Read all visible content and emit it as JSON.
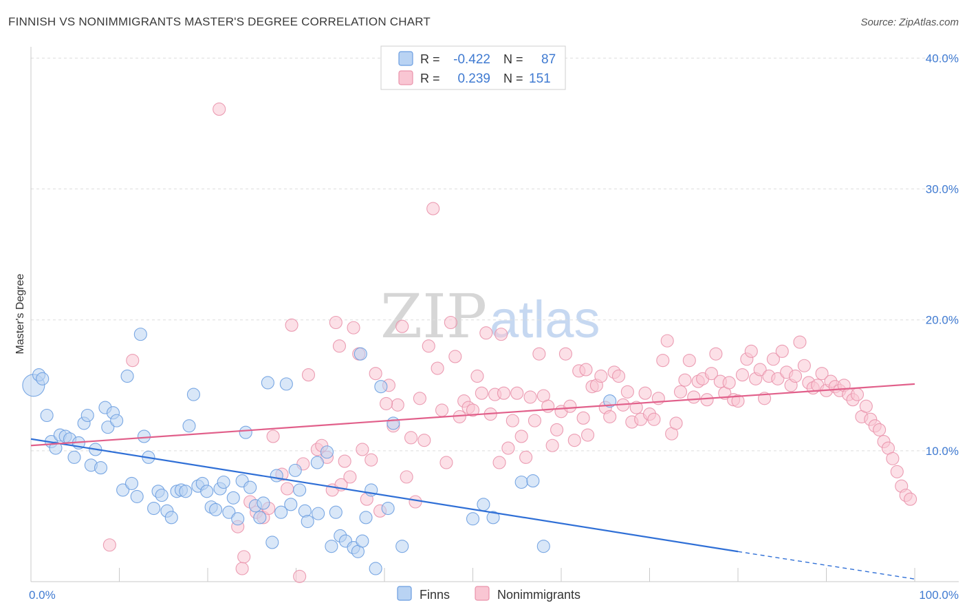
{
  "title": "FINNISH VS NONIMMIGRANTS MASTER'S DEGREE CORRELATION CHART",
  "source": "Source: ZipAtlas.com",
  "watermark": {
    "zip": "ZIP",
    "atlas": "atlas"
  },
  "legend": {
    "r_label": "R =",
    "n_label": "N =",
    "rows": [
      {
        "r": "-0.422",
        "n": "87",
        "fill": "#b9d3f3",
        "stroke": "#6a9de0"
      },
      {
        "r": "0.239",
        "n": "151",
        "fill": "#f9c6d3",
        "stroke": "#e992ab"
      }
    ]
  },
  "bottom_legend": [
    {
      "label": "Finns",
      "fill": "#b9d3f3",
      "stroke": "#6a9de0"
    },
    {
      "label": "Nonimmigrants",
      "fill": "#f9c6d3",
      "stroke": "#e992ab"
    }
  ],
  "chart_data": {
    "type": "scatter",
    "title": "FINNISH VS NONIMMIGRANTS MASTER'S DEGREE CORRELATION CHART",
    "xlabel": "",
    "ylabel": "Master's Degree",
    "xlim": [
      0,
      100
    ],
    "ylim": [
      0,
      40.6
    ],
    "x_tick_labels": [
      "0.0%",
      "100.0%"
    ],
    "y_ticks": [
      10,
      20,
      30,
      40
    ],
    "y_tick_labels": [
      "10.0%",
      "20.0%",
      "30.0%",
      "40.0%"
    ],
    "grid": true,
    "series": [
      {
        "name": "Finns",
        "color": "#6a9de0",
        "fill": "#b9d3f3",
        "trend": {
          "x0": 0,
          "y0": 10.9,
          "x1": 80,
          "y1": 2.3,
          "dash_to_x": 100,
          "dash_to_y": 0.2,
          "color": "#2f6fd6"
        },
        "points": [
          [
            0.3,
            15.0,
            3
          ],
          [
            0.9,
            15.8,
            1
          ],
          [
            1.3,
            15.5,
            1
          ],
          [
            1.8,
            12.7,
            1
          ],
          [
            2.3,
            10.7,
            1
          ],
          [
            2.8,
            10.2,
            1
          ],
          [
            3.3,
            11.2,
            1
          ],
          [
            3.9,
            11.1,
            1
          ],
          [
            4.4,
            10.9,
            1
          ],
          [
            4.9,
            9.5,
            1
          ],
          [
            5.4,
            10.6,
            1
          ],
          [
            6.0,
            12.1,
            1
          ],
          [
            6.4,
            12.7,
            1
          ],
          [
            6.8,
            8.9,
            1
          ],
          [
            7.3,
            10.1,
            1
          ],
          [
            7.9,
            8.7,
            1
          ],
          [
            8.4,
            13.3,
            1
          ],
          [
            8.7,
            11.8,
            1
          ],
          [
            9.3,
            12.9,
            1
          ],
          [
            9.7,
            12.3,
            1
          ],
          [
            10.4,
            7.0,
            1
          ],
          [
            10.9,
            15.7,
            1
          ],
          [
            11.4,
            7.5,
            1
          ],
          [
            12.0,
            6.5,
            1
          ],
          [
            12.4,
            18.9,
            1
          ],
          [
            12.8,
            11.1,
            1
          ],
          [
            13.3,
            9.5,
            1
          ],
          [
            13.9,
            5.6,
            1
          ],
          [
            14.4,
            6.9,
            1
          ],
          [
            14.8,
            6.6,
            1
          ],
          [
            15.4,
            5.4,
            1
          ],
          [
            15.9,
            4.9,
            1
          ],
          [
            16.5,
            6.9,
            1
          ],
          [
            17.0,
            7.0,
            1
          ],
          [
            17.5,
            6.9,
            1
          ],
          [
            17.9,
            11.9,
            1
          ],
          [
            18.4,
            14.3,
            1
          ],
          [
            18.9,
            7.3,
            1
          ],
          [
            19.4,
            7.5,
            1
          ],
          [
            19.9,
            6.9,
            1
          ],
          [
            20.4,
            5.7,
            1
          ],
          [
            20.9,
            5.5,
            1
          ],
          [
            21.4,
            7.1,
            1
          ],
          [
            21.8,
            7.6,
            1
          ],
          [
            22.4,
            5.3,
            1
          ],
          [
            22.9,
            6.4,
            1
          ],
          [
            23.4,
            4.8,
            1
          ],
          [
            23.9,
            7.7,
            1
          ],
          [
            24.3,
            11.4,
            1
          ],
          [
            24.8,
            7.2,
            1
          ],
          [
            25.4,
            5.8,
            1
          ],
          [
            25.9,
            4.9,
            1
          ],
          [
            26.3,
            6.0,
            1
          ],
          [
            26.8,
            15.2,
            1
          ],
          [
            27.3,
            3.0,
            1
          ],
          [
            27.8,
            8.1,
            1
          ],
          [
            28.3,
            5.3,
            1
          ],
          [
            28.9,
            15.1,
            1
          ],
          [
            29.4,
            5.9,
            1
          ],
          [
            29.9,
            8.5,
            1
          ],
          [
            30.4,
            7.0,
            1
          ],
          [
            31.0,
            5.4,
            1
          ],
          [
            31.3,
            4.6,
            1
          ],
          [
            32.4,
            9.1,
            1
          ],
          [
            32.5,
            5.2,
            1
          ],
          [
            33.5,
            9.9,
            1
          ],
          [
            34.0,
            2.7,
            1
          ],
          [
            34.5,
            5.3,
            1
          ],
          [
            35.0,
            3.5,
            1
          ],
          [
            35.6,
            3.1,
            1
          ],
          [
            36.5,
            2.6,
            1
          ],
          [
            37.0,
            2.3,
            1
          ],
          [
            37.5,
            3.1,
            1
          ],
          [
            37.9,
            4.9,
            1
          ],
          [
            38.5,
            7.0,
            1
          ],
          [
            39.0,
            1.0,
            1
          ],
          [
            39.6,
            14.9,
            1
          ],
          [
            40.4,
            5.6,
            1
          ],
          [
            41.0,
            12.1,
            1
          ],
          [
            42.0,
            2.7,
            1
          ],
          [
            50.0,
            4.8,
            1
          ],
          [
            51.2,
            5.9,
            1
          ],
          [
            52.3,
            4.9,
            1
          ],
          [
            55.5,
            7.6,
            1
          ],
          [
            56.8,
            7.7,
            1
          ],
          [
            58.0,
            2.7,
            1
          ],
          [
            65.5,
            13.8,
            1
          ],
          [
            37.3,
            17.4,
            1
          ]
        ]
      },
      {
        "name": "Nonimmigrants",
        "color": "#e992ab",
        "fill": "#f9c6d3",
        "trend": {
          "x0": 0,
          "y0": 10.4,
          "x1": 100,
          "y1": 15.1,
          "color": "#e15f8a"
        },
        "points": [
          [
            8.9,
            2.8,
            1
          ],
          [
            11.5,
            16.9,
            1
          ],
          [
            21.3,
            36.1,
            1
          ],
          [
            23.4,
            4.2,
            1
          ],
          [
            23.9,
            1.0,
            1
          ],
          [
            24.8,
            6.1,
            1
          ],
          [
            25.5,
            5.3,
            1
          ],
          [
            26.3,
            4.9,
            1
          ],
          [
            26.9,
            5.6,
            1
          ],
          [
            27.4,
            11.1,
            1
          ],
          [
            28.4,
            8.2,
            1
          ],
          [
            29.0,
            7.1,
            1
          ],
          [
            29.5,
            19.6,
            1
          ],
          [
            30.4,
            0.4,
            1
          ],
          [
            30.8,
            9.0,
            1
          ],
          [
            31.4,
            15.8,
            1
          ],
          [
            32.4,
            10.1,
            1
          ],
          [
            32.9,
            10.4,
            1
          ],
          [
            33.5,
            9.5,
            1
          ],
          [
            34.1,
            7.0,
            1
          ],
          [
            34.5,
            19.8,
            1
          ],
          [
            35.1,
            7.4,
            1
          ],
          [
            35.5,
            9.2,
            1
          ],
          [
            36.1,
            8.0,
            1
          ],
          [
            36.5,
            19.4,
            1
          ],
          [
            37.1,
            17.4,
            1
          ],
          [
            37.5,
            10.1,
            1
          ],
          [
            38.0,
            6.3,
            1
          ],
          [
            38.5,
            9.3,
            1
          ],
          [
            39.0,
            15.9,
            1
          ],
          [
            39.5,
            5.4,
            1
          ],
          [
            40.5,
            15.0,
            1
          ],
          [
            41.0,
            11.9,
            1
          ],
          [
            41.5,
            13.5,
            1
          ],
          [
            42.0,
            19.5,
            1
          ],
          [
            42.5,
            8.0,
            1
          ],
          [
            43.0,
            11.0,
            1
          ],
          [
            43.5,
            6.1,
            1
          ],
          [
            44.0,
            14.0,
            1
          ],
          [
            44.5,
            10.8,
            1
          ],
          [
            45.0,
            18.0,
            1
          ],
          [
            45.5,
            28.5,
            1
          ],
          [
            46.0,
            16.3,
            1
          ],
          [
            46.5,
            13.1,
            1
          ],
          [
            47.0,
            9.1,
            1
          ],
          [
            47.5,
            19.8,
            1
          ],
          [
            48.0,
            17.2,
            1
          ],
          [
            48.5,
            12.6,
            1
          ],
          [
            49.0,
            13.8,
            1
          ],
          [
            49.5,
            13.3,
            1
          ],
          [
            50.0,
            13.1,
            1
          ],
          [
            50.5,
            15.7,
            1
          ],
          [
            51.0,
            14.4,
            1
          ],
          [
            51.5,
            19.0,
            1
          ],
          [
            52.0,
            12.8,
            1
          ],
          [
            52.5,
            14.3,
            1
          ],
          [
            53.0,
            9.1,
            1
          ],
          [
            53.5,
            14.4,
            1
          ],
          [
            54.0,
            10.2,
            1
          ],
          [
            54.5,
            12.3,
            1
          ],
          [
            55.0,
            14.4,
            1
          ],
          [
            55.5,
            11.1,
            1
          ],
          [
            56.0,
            9.5,
            1
          ],
          [
            56.5,
            14.1,
            1
          ],
          [
            57.0,
            12.3,
            1
          ],
          [
            57.5,
            17.4,
            1
          ],
          [
            58.0,
            14.2,
            1
          ],
          [
            58.5,
            13.4,
            1
          ],
          [
            59.0,
            10.4,
            1
          ],
          [
            59.5,
            11.6,
            1
          ],
          [
            60.0,
            13.0,
            1
          ],
          [
            60.5,
            17.4,
            1
          ],
          [
            61.0,
            13.4,
            1
          ],
          [
            61.5,
            10.8,
            1
          ],
          [
            62.0,
            16.1,
            1
          ],
          [
            62.5,
            12.5,
            1
          ],
          [
            63.0,
            11.2,
            1
          ],
          [
            63.5,
            14.9,
            1
          ],
          [
            64.0,
            15.0,
            1
          ],
          [
            64.5,
            15.7,
            1
          ],
          [
            65.0,
            13.3,
            1
          ],
          [
            65.5,
            12.6,
            1
          ],
          [
            66.0,
            16.0,
            1
          ],
          [
            66.5,
            15.7,
            1
          ],
          [
            67.0,
            13.5,
            1
          ],
          [
            67.5,
            14.5,
            1
          ],
          [
            68.0,
            12.2,
            1
          ],
          [
            68.5,
            13.3,
            1
          ],
          [
            69.0,
            12.4,
            1
          ],
          [
            69.5,
            14.4,
            1
          ],
          [
            70.0,
            12.8,
            1
          ],
          [
            70.5,
            12.4,
            1
          ],
          [
            71.0,
            14.0,
            1
          ],
          [
            71.5,
            16.9,
            1
          ],
          [
            72.0,
            18.4,
            1
          ],
          [
            72.5,
            11.3,
            1
          ],
          [
            73.0,
            12.1,
            1
          ],
          [
            73.5,
            14.5,
            1
          ],
          [
            74.0,
            15.4,
            1
          ],
          [
            74.5,
            16.9,
            1
          ],
          [
            75.0,
            14.1,
            1
          ],
          [
            75.5,
            15.3,
            1
          ],
          [
            76.0,
            15.5,
            1
          ],
          [
            76.5,
            13.9,
            1
          ],
          [
            77.0,
            15.9,
            1
          ],
          [
            77.5,
            17.4,
            1
          ],
          [
            78.0,
            15.3,
            1
          ],
          [
            78.5,
            14.4,
            1
          ],
          [
            79.0,
            15.2,
            1
          ],
          [
            79.5,
            13.9,
            1
          ],
          [
            80.0,
            13.8,
            1
          ],
          [
            80.5,
            15.8,
            1
          ],
          [
            81.0,
            17.0,
            1
          ],
          [
            81.5,
            17.6,
            1
          ],
          [
            82.0,
            15.5,
            1
          ],
          [
            82.5,
            16.2,
            1
          ],
          [
            83.0,
            14.0,
            1
          ],
          [
            83.5,
            15.7,
            1
          ],
          [
            84.0,
            17.0,
            1
          ],
          [
            84.5,
            15.5,
            1
          ],
          [
            85.0,
            17.6,
            1
          ],
          [
            85.5,
            16.0,
            1
          ],
          [
            86.0,
            15.0,
            1
          ],
          [
            86.5,
            15.7,
            1
          ],
          [
            87.0,
            18.3,
            1
          ],
          [
            87.5,
            16.5,
            1
          ],
          [
            88.0,
            15.2,
            1
          ],
          [
            88.5,
            14.8,
            1
          ],
          [
            89.0,
            15.0,
            1
          ],
          [
            89.5,
            15.9,
            1
          ],
          [
            90.0,
            14.6,
            1
          ],
          [
            90.5,
            15.3,
            1
          ],
          [
            91.0,
            14.9,
            1
          ],
          [
            91.5,
            14.6,
            1
          ],
          [
            92.0,
            15.0,
            1
          ],
          [
            92.5,
            14.3,
            1
          ],
          [
            93.0,
            13.9,
            1
          ],
          [
            93.5,
            14.3,
            1
          ],
          [
            94.0,
            12.6,
            1
          ],
          [
            94.5,
            13.4,
            1
          ],
          [
            95.0,
            12.4,
            1
          ],
          [
            95.5,
            11.9,
            1
          ],
          [
            96.0,
            11.6,
            1
          ],
          [
            96.5,
            10.7,
            1
          ],
          [
            97.0,
            10.2,
            1
          ],
          [
            97.5,
            9.4,
            1
          ],
          [
            98.0,
            8.4,
            1
          ],
          [
            98.5,
            7.3,
            1
          ],
          [
            99.0,
            6.6,
            1
          ],
          [
            99.5,
            6.3,
            1
          ],
          [
            24.1,
            1.9,
            1
          ],
          [
            34.9,
            18.0,
            1
          ],
          [
            40.2,
            13.6,
            1
          ],
          [
            53.2,
            18.9,
            1
          ],
          [
            62.8,
            16.2,
            1
          ]
        ]
      }
    ]
  }
}
